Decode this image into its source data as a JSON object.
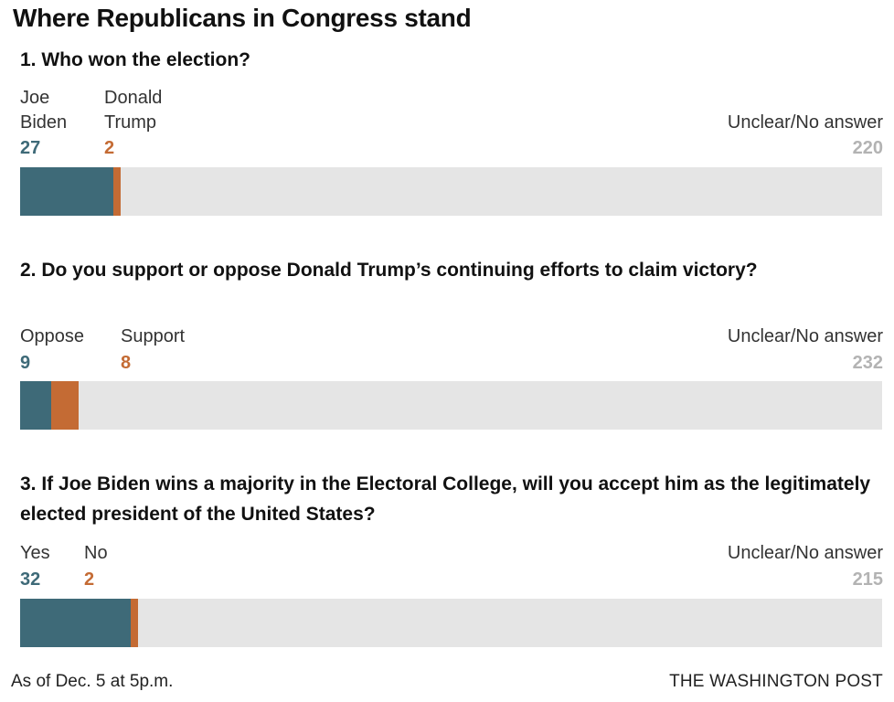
{
  "title": "Where Republicans in Congress stand",
  "footer": {
    "note": "As of Dec. 5 at 5p.m.",
    "credit": "THE WASHINGTON POST"
  },
  "colors": {
    "first": "#3e6a78",
    "second": "#c46b34",
    "remainder": "#e5e5e5",
    "remainder_text": "#b3b3b3"
  },
  "chart_data": [
    {
      "type": "bar",
      "orientation": "horizontal-stacked",
      "question": "1. Who won the election?",
      "categories": [
        "Joe\nBiden",
        "Donald\nTrump",
        "Unclear/No answer"
      ],
      "values": [
        27,
        2,
        220
      ],
      "total": 249
    },
    {
      "type": "bar",
      "orientation": "horizontal-stacked",
      "question": "2. Do you support or oppose Donald Trump’s continuing efforts to claim victory?",
      "categories": [
        "Oppose",
        "Support",
        "Unclear/No answer"
      ],
      "values": [
        9,
        8,
        232
      ],
      "total": 249
    },
    {
      "type": "bar",
      "orientation": "horizontal-stacked",
      "question": "3. If Joe Biden wins a majority in the Electoral College, will you accept him as the legitimately elected president of the United States?",
      "categories": [
        "Yes",
        "No",
        "Unclear/No answer"
      ],
      "values": [
        32,
        2,
        215
      ],
      "total": 249
    }
  ]
}
